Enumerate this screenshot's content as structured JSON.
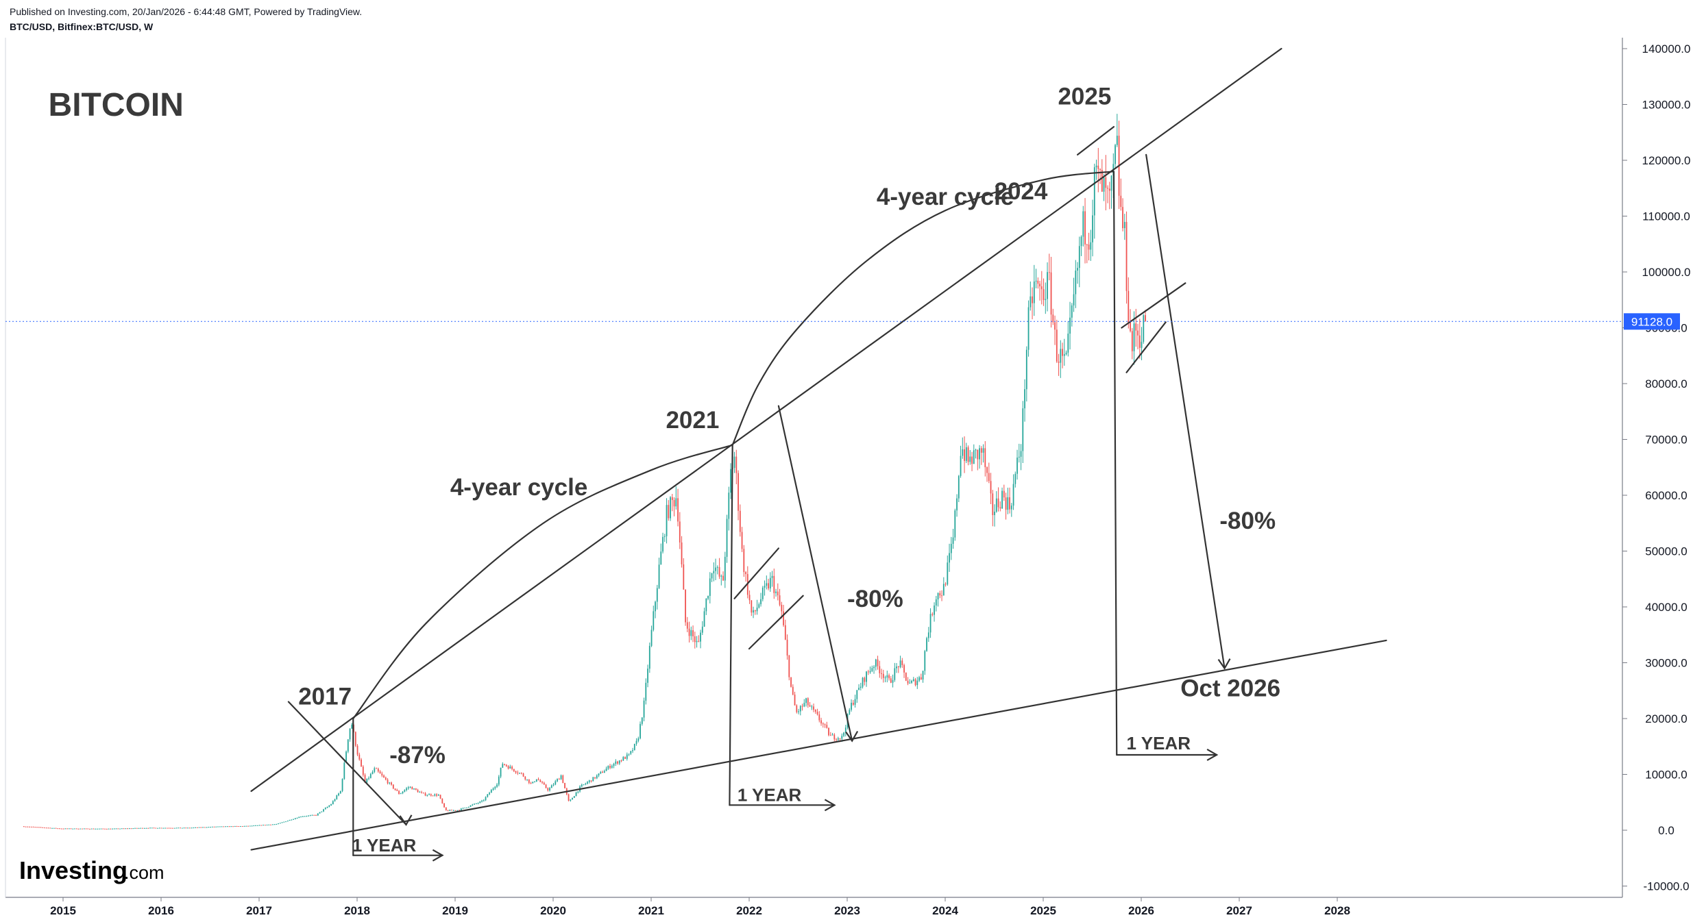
{
  "header": {
    "published": "Published on Investing.com, 20/Jan/2026 - 6:44:48 GMT, Powered by TradingView.",
    "symbol": "BTC/USD, Bitfinex:BTC/USD, W"
  },
  "watermark": "Investing.com",
  "chart_data": {
    "type": "candlestick",
    "title": "BITCOIN",
    "symbol": "BTC/USD",
    "interval": "W",
    "x_ticks": [
      "2015",
      "2016",
      "2017",
      "2018",
      "2019",
      "2020",
      "2021",
      "2022",
      "2023",
      "2024",
      "2025",
      "2026",
      "2027",
      "2028"
    ],
    "y_ticks": [
      "140000.0",
      "130000.0",
      "120000.0",
      "110000.0",
      "100000.0",
      "90000.0",
      "80000.0",
      "70000.0",
      "60000.0",
      "50000.0",
      "40000.0",
      "30000.0",
      "20000.0",
      "10000.0",
      "0.0",
      "-10000.0"
    ],
    "ylim": [
      -10000,
      140000
    ],
    "xlim": [
      2014.58,
      2028.6
    ],
    "last_price": "91128.0",
    "last_price_value": 91128,
    "colors": {
      "up": "#26a69a",
      "down": "#ef5350",
      "drawing": "#333333",
      "price_line": "#2962ff"
    },
    "price_path": [
      [
        2014.6,
        700
      ],
      [
        2015.0,
        300
      ],
      [
        2015.5,
        260
      ],
      [
        2015.9,
        420
      ],
      [
        2016.3,
        430
      ],
      [
        2016.6,
        650
      ],
      [
        2016.9,
        750
      ],
      [
        2017.2,
        1100
      ],
      [
        2017.45,
        2500
      ],
      [
        2017.6,
        2700
      ],
      [
        2017.75,
        4600
      ],
      [
        2017.85,
        7000
      ],
      [
        2017.93,
        17000
      ],
      [
        2017.96,
        19500
      ],
      [
        2018.02,
        14000
      ],
      [
        2018.1,
        8500
      ],
      [
        2018.2,
        11000
      ],
      [
        2018.3,
        9200
      ],
      [
        2018.45,
        6500
      ],
      [
        2018.55,
        7800
      ],
      [
        2018.7,
        6400
      ],
      [
        2018.85,
        6300
      ],
      [
        2018.92,
        3500
      ],
      [
        2019.05,
        3600
      ],
      [
        2019.3,
        5200
      ],
      [
        2019.45,
        8500
      ],
      [
        2019.5,
        12000
      ],
      [
        2019.55,
        11500
      ],
      [
        2019.7,
        10000
      ],
      [
        2019.8,
        8200
      ],
      [
        2019.85,
        9300
      ],
      [
        2019.97,
        7200
      ],
      [
        2020.1,
        9800
      ],
      [
        2020.18,
        5000
      ],
      [
        2020.3,
        7800
      ],
      [
        2020.45,
        9500
      ],
      [
        2020.6,
        11500
      ],
      [
        2020.8,
        13500
      ],
      [
        2020.88,
        16000
      ],
      [
        2020.95,
        23000
      ],
      [
        2021.0,
        32000
      ],
      [
        2021.1,
        47000
      ],
      [
        2021.18,
        57000
      ],
      [
        2021.28,
        60000
      ],
      [
        2021.37,
        37000
      ],
      [
        2021.5,
        33000
      ],
      [
        2021.57,
        40000
      ],
      [
        2021.65,
        48000
      ],
      [
        2021.75,
        44000
      ],
      [
        2021.83,
        64000
      ],
      [
        2021.87,
        67000
      ],
      [
        2021.95,
        49000
      ],
      [
        2022.05,
        38000
      ],
      [
        2022.15,
        42000
      ],
      [
        2022.25,
        45000
      ],
      [
        2022.35,
        39000
      ],
      [
        2022.45,
        25000
      ],
      [
        2022.5,
        21000
      ],
      [
        2022.6,
        23000
      ],
      [
        2022.75,
        19500
      ],
      [
        2022.85,
        16800
      ],
      [
        2022.97,
        16600
      ],
      [
        2023.05,
        22000
      ],
      [
        2023.2,
        27500
      ],
      [
        2023.3,
        30000
      ],
      [
        2023.45,
        26500
      ],
      [
        2023.55,
        30000
      ],
      [
        2023.65,
        26000
      ],
      [
        2023.78,
        27500
      ],
      [
        2023.83,
        34500
      ],
      [
        2023.92,
        42000
      ],
      [
        2024.0,
        43000
      ],
      [
        2024.1,
        52000
      ],
      [
        2024.18,
        69000
      ],
      [
        2024.25,
        66000
      ],
      [
        2024.4,
        68000
      ],
      [
        2024.5,
        57000
      ],
      [
        2024.6,
        60000
      ],
      [
        2024.68,
        58000
      ],
      [
        2024.8,
        70000
      ],
      [
        2024.86,
        90000
      ],
      [
        2024.93,
        98000
      ],
      [
        2025.0,
        96000
      ],
      [
        2025.08,
        98000
      ],
      [
        2025.15,
        86000
      ],
      [
        2025.25,
        83000
      ],
      [
        2025.33,
        95000
      ],
      [
        2025.42,
        108000
      ],
      [
        2025.5,
        107000
      ],
      [
        2025.55,
        118000
      ],
      [
        2025.62,
        115000
      ],
      [
        2025.7,
        112000
      ],
      [
        2025.77,
        123000
      ],
      [
        2025.8,
        112000
      ],
      [
        2025.85,
        106000
      ],
      [
        2025.88,
        95000
      ],
      [
        2025.92,
        86000
      ],
      [
        2025.96,
        90000
      ],
      [
        2026.02,
        88000
      ],
      [
        2026.05,
        91128
      ]
    ],
    "annotations": [
      {
        "text": "BITCOIN",
        "x": 2014.85,
        "y": 128000,
        "size": "xl"
      },
      {
        "text": "2017",
        "x": 2017.4,
        "y": 22500,
        "size": "lg"
      },
      {
        "text": "-87%",
        "x": 2018.33,
        "y": 12000,
        "size": "lg"
      },
      {
        "text": "1 YEAR",
        "x": 2017.95,
        "y": -3800,
        "size": "md"
      },
      {
        "text": "4-year cycle",
        "x": 2018.95,
        "y": 60000,
        "size": "lg"
      },
      {
        "text": "2021",
        "x": 2021.15,
        "y": 72000,
        "size": "lg"
      },
      {
        "text": "1 YEAR",
        "x": 2021.88,
        "y": 5200,
        "size": "md"
      },
      {
        "text": "-80%",
        "x": 2023.0,
        "y": 40000,
        "size": "lg"
      },
      {
        "text": "4-year cycle",
        "x": 2023.3,
        "y": 112000,
        "size": "lg"
      },
      {
        "text": "2024",
        "x": 2024.5,
        "y": 113000,
        "size": "lg"
      },
      {
        "text": "2025",
        "x": 2025.15,
        "y": 130000,
        "size": "lg"
      },
      {
        "text": "-80%",
        "x": 2026.8,
        "y": 54000,
        "size": "lg"
      },
      {
        "text": "Oct 2026",
        "x": 2026.4,
        "y": 24000,
        "size": "lg"
      },
      {
        "text": "1 YEAR",
        "x": 2025.85,
        "y": 14500,
        "size": "md"
      }
    ],
    "drawn_lines": [
      [
        [
          2016.92,
          7000
        ],
        [
          2027.43,
          140000
        ]
      ],
      [
        [
          2016.92,
          -3500
        ],
        [
          2028.5,
          34000
        ]
      ],
      [
        [
          2017.96,
          20000
        ],
        [
          2017.96,
          -4500
        ]
      ],
      [
        [
          2017.96,
          -4500
        ],
        [
          2018.87,
          -4500
        ]
      ],
      [
        [
          2017.3,
          23000
        ],
        [
          2018.5,
          1000
        ]
      ],
      [
        [
          2021.83,
          69000
        ],
        [
          2021.8,
          4500
        ]
      ],
      [
        [
          2021.8,
          4500
        ],
        [
          2022.87,
          4500
        ]
      ],
      [
        [
          2022.3,
          76000
        ],
        [
          2023.05,
          16000
        ]
      ],
      [
        [
          2025.72,
          118000
        ],
        [
          2025.75,
          13500
        ]
      ],
      [
        [
          2025.75,
          13500
        ],
        [
          2026.77,
          13500
        ]
      ],
      [
        [
          2026.05,
          121000
        ],
        [
          2026.85,
          29000
        ]
      ],
      [
        [
          2021.85,
          41500
        ],
        [
          2022.3,
          50500
        ]
      ],
      [
        [
          2022.0,
          32500
        ],
        [
          2022.55,
          42000
        ]
      ],
      [
        [
          2025.35,
          121000
        ],
        [
          2025.72,
          126000
        ]
      ],
      [
        [
          2025.8,
          90000
        ],
        [
          2026.45,
          98000
        ]
      ],
      [
        [
          2025.85,
          82000
        ],
        [
          2026.25,
          91000
        ]
      ]
    ],
    "drawn_arcs": [
      [
        [
          2017.96,
          20000
        ],
        [
          2018.7,
          37000
        ],
        [
          2019.9,
          55000
        ],
        [
          2021.0,
          64500
        ],
        [
          2021.83,
          69000
        ]
      ],
      [
        [
          2021.83,
          69000
        ],
        [
          2022.1,
          80000
        ],
        [
          2022.5,
          90000
        ],
        [
          2023.2,
          102000
        ],
        [
          2024.0,
          111000
        ],
        [
          2025.0,
          116500
        ],
        [
          2025.72,
          118000
        ]
      ]
    ],
    "arrow_heads": [
      [
        [
          2018.87,
          -4500
        ],
        "right"
      ],
      [
        [
          2018.5,
          1000
        ],
        "down"
      ],
      [
        [
          2022.87,
          4500
        ],
        "right"
      ],
      [
        [
          2023.05,
          16000
        ],
        "down"
      ],
      [
        [
          2026.77,
          13500
        ],
        "right"
      ],
      [
        [
          2026.85,
          29000
        ],
        "down"
      ]
    ]
  }
}
